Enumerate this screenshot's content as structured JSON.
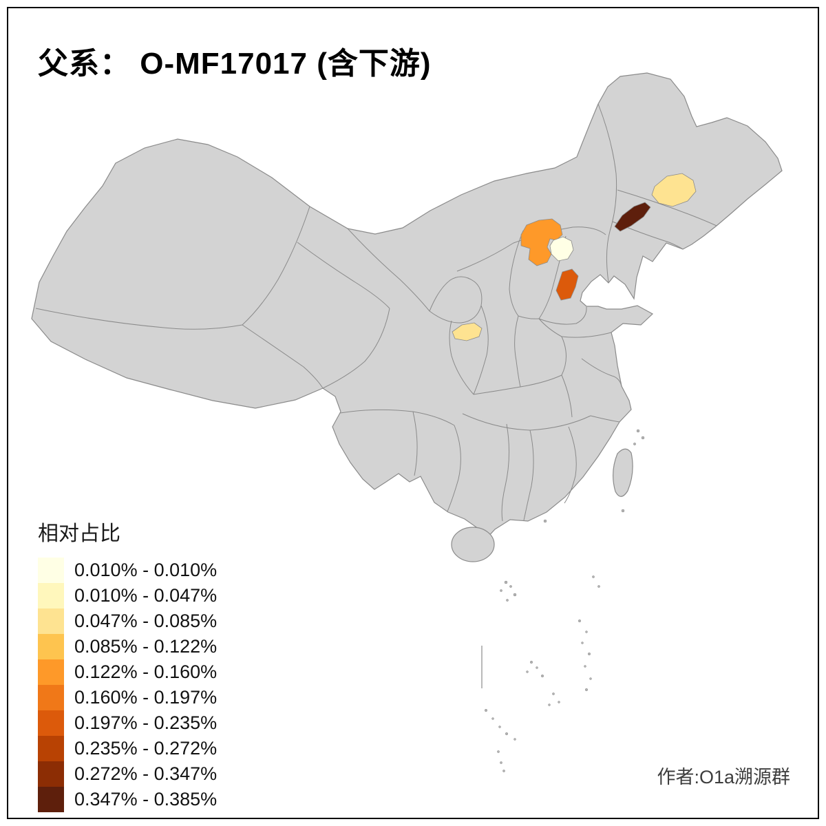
{
  "title": "父系： O-MF17017 (含下游)",
  "legend": {
    "title": "相对占比",
    "entries": [
      {
        "label": "0.010% - 0.010%",
        "color": "#FFFFE5"
      },
      {
        "label": "0.010% - 0.047%",
        "color": "#FFF7BC"
      },
      {
        "label": "0.047% - 0.085%",
        "color": "#FEE391"
      },
      {
        "label": "0.085% - 0.122%",
        "color": "#FEC44F"
      },
      {
        "label": "0.122% - 0.160%",
        "color": "#FE9929"
      },
      {
        "label": "0.160% - 0.197%",
        "color": "#F07818"
      },
      {
        "label": "0.197% - 0.235%",
        "color": "#DC5A0B"
      },
      {
        "label": "0.235% - 0.272%",
        "color": "#B84203"
      },
      {
        "label": "0.272% - 0.347%",
        "color": "#8C2D04"
      },
      {
        "label": "0.347% - 0.385%",
        "color": "#5E1F0C"
      }
    ]
  },
  "attribution": "作者:O1a溯源群",
  "map": {
    "base_fill": "#D3D3D3",
    "border_color": "#8A8A8A",
    "background": "#FFFFFF",
    "highlighted_regions": [
      {
        "name": "western-liaoning",
        "value_range": "0.347% - 0.385%",
        "color": "#5E1F0C"
      },
      {
        "name": "central-jilin",
        "value_range": "0.047% - 0.085%",
        "color": "#FEE391"
      },
      {
        "name": "northern-shanxi",
        "value_range": "0.122% - 0.160%",
        "color": "#FE9929"
      },
      {
        "name": "beijing",
        "value_range": "0.010% - 0.010%",
        "color": "#FFFFE5"
      },
      {
        "name": "western-shandong",
        "value_range": "0.197% - 0.235%",
        "color": "#DC5A0B"
      },
      {
        "name": "eastern-gansu",
        "value_range": "0.047% - 0.085%",
        "color": "#FEE391"
      }
    ]
  }
}
